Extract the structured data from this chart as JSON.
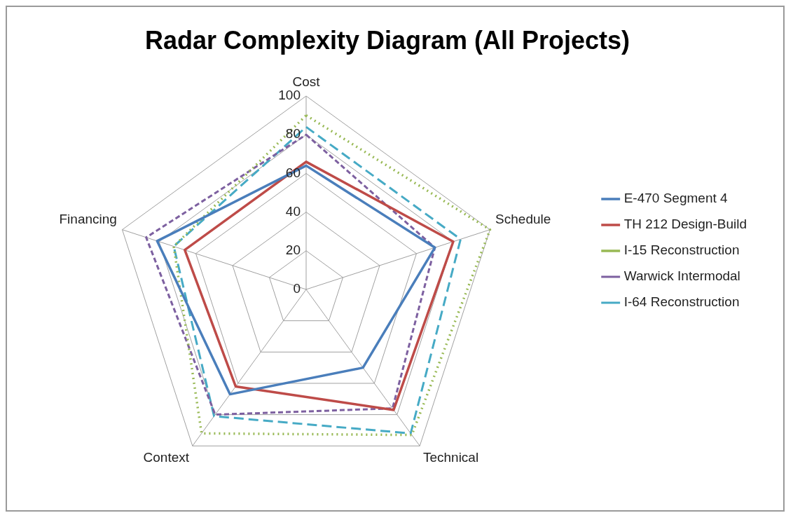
{
  "chart_data": {
    "type": "radar",
    "title": "Radar Complexity Diagram (All Projects)",
    "categories": [
      "Cost",
      "Schedule",
      "Technical",
      "Context",
      "Financing"
    ],
    "ylim": [
      0,
      100
    ],
    "yticks": [
      0,
      20,
      40,
      60,
      80,
      100
    ],
    "grid": true,
    "legend": "right",
    "series": [
      {
        "name": "E-470 Segment 4",
        "color": "#4a7ebb",
        "line_style": "solid",
        "values": [
          64,
          70,
          50,
          67,
          81
        ]
      },
      {
        "name": "TH 212 Design-Build",
        "color": "#be4b48",
        "line_style": "solid",
        "values": [
          66,
          80,
          77,
          62,
          66
        ]
      },
      {
        "name": "I-15 Reconstruction",
        "color": "#98b954",
        "line_style": "dotted",
        "values": [
          90,
          100,
          93,
          92,
          72
        ]
      },
      {
        "name": "Warwick Intermodal",
        "color": "#7d60a0",
        "line_style": "dashed",
        "values": [
          80,
          70,
          76,
          80,
          87
        ]
      },
      {
        "name": "I-64 Reconstruction",
        "color": "#46aac5",
        "line_style": "dashed",
        "values": [
          84,
          84,
          92,
          81,
          72
        ]
      }
    ]
  }
}
